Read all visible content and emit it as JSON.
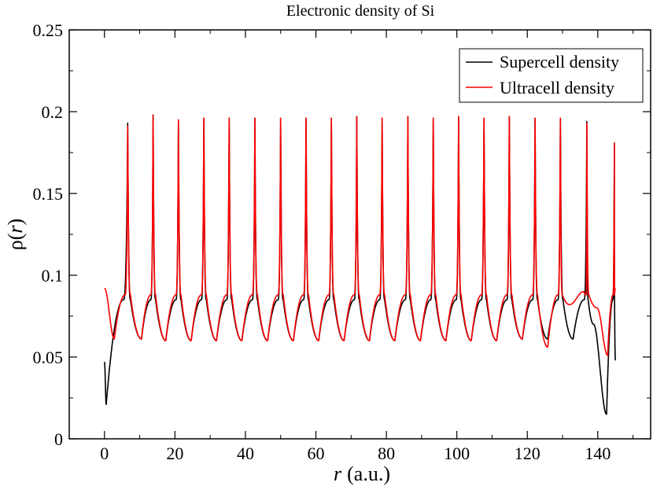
{
  "chart_data": {
    "type": "line",
    "title": "Electronic density of Si",
    "xlabel_main": "r",
    "xlabel_unit": "(a.u.)",
    "ylabel_main": "ρ(",
    "ylabel_var": "r",
    "ylabel_close": ")",
    "xlim": [
      -10,
      155
    ],
    "ylim": [
      0,
      0.25
    ],
    "x_ticks": [
      0,
      20,
      40,
      60,
      80,
      100,
      120,
      140
    ],
    "x_tick_labels": [
      "0",
      "20",
      "40",
      "60",
      "80",
      "100",
      "120",
      "140"
    ],
    "y_ticks": [
      0,
      0.05,
      0.1,
      0.15,
      0.2,
      0.25
    ],
    "y_tick_labels": [
      "0",
      "0.05",
      "0.1",
      "0.15",
      "0.2",
      "0.25"
    ],
    "grid": false,
    "legend_position": "top-right",
    "series": [
      {
        "name": "Supercell density",
        "color": "#000000",
        "start_x": 0,
        "start_y": 0.047,
        "end_x": 145,
        "end_y": 0.048,
        "peaks_x": [
          6.6,
          13.8,
          21.0,
          28.2,
          35.4,
          42.7,
          50.0,
          57.2,
          64.4,
          71.6,
          78.8,
          86.1,
          93.3,
          100.5,
          107.7,
          114.9,
          122.2,
          129.4,
          136.9,
          144.7
        ],
        "peaks_y": [
          0.193,
          0.198,
          0.195,
          0.196,
          0.196,
          0.196,
          0.196,
          0.196,
          0.196,
          0.197,
          0.196,
          0.197,
          0.196,
          0.197,
          0.196,
          0.197,
          0.196,
          0.196,
          0.194,
          0.18
        ],
        "minima_x": [
          0.5,
          10.5,
          17.4,
          24.6,
          31.8,
          39.0,
          46.3,
          53.6,
          60.8,
          68.0,
          75.2,
          82.4,
          89.7,
          96.9,
          104.1,
          111.3,
          118.6,
          125.8,
          133.0,
          138.8,
          142.5
        ],
        "minima_y": [
          0.021,
          0.061,
          0.06,
          0.06,
          0.06,
          0.06,
          0.06,
          0.06,
          0.06,
          0.06,
          0.06,
          0.06,
          0.06,
          0.06,
          0.06,
          0.06,
          0.061,
          0.061,
          0.061,
          0.07,
          0.015
        ],
        "shoulder_y": 0.085
      },
      {
        "name": "Ultracell density",
        "color": "#ff0000",
        "start_x": 0,
        "start_y": 0.092,
        "end_x": 145,
        "end_y": 0.092,
        "peaks_x": [
          6.6,
          13.8,
          21.0,
          28.2,
          35.4,
          42.7,
          50.0,
          57.2,
          64.4,
          71.6,
          78.8,
          86.1,
          93.3,
          100.5,
          107.7,
          114.9,
          122.2,
          129.4,
          136.9,
          144.7
        ],
        "peaks_y": [
          0.191,
          0.198,
          0.195,
          0.196,
          0.196,
          0.196,
          0.196,
          0.196,
          0.196,
          0.197,
          0.196,
          0.197,
          0.196,
          0.197,
          0.196,
          0.197,
          0.196,
          0.196,
          0.193,
          0.181
        ],
        "minima_x": [
          2.8,
          10.5,
          17.4,
          24.6,
          31.8,
          39.0,
          46.3,
          53.6,
          60.8,
          68.0,
          75.2,
          82.4,
          89.7,
          96.9,
          104.1,
          111.3,
          118.6,
          125.8,
          132.0,
          136.0,
          139.8,
          142.8
        ],
        "minima_y": [
          0.061,
          0.061,
          0.06,
          0.06,
          0.06,
          0.06,
          0.06,
          0.06,
          0.06,
          0.06,
          0.06,
          0.06,
          0.06,
          0.06,
          0.06,
          0.06,
          0.061,
          0.056,
          0.082,
          0.09,
          0.08,
          0.051
        ],
        "shoulder_y": 0.088
      }
    ]
  }
}
